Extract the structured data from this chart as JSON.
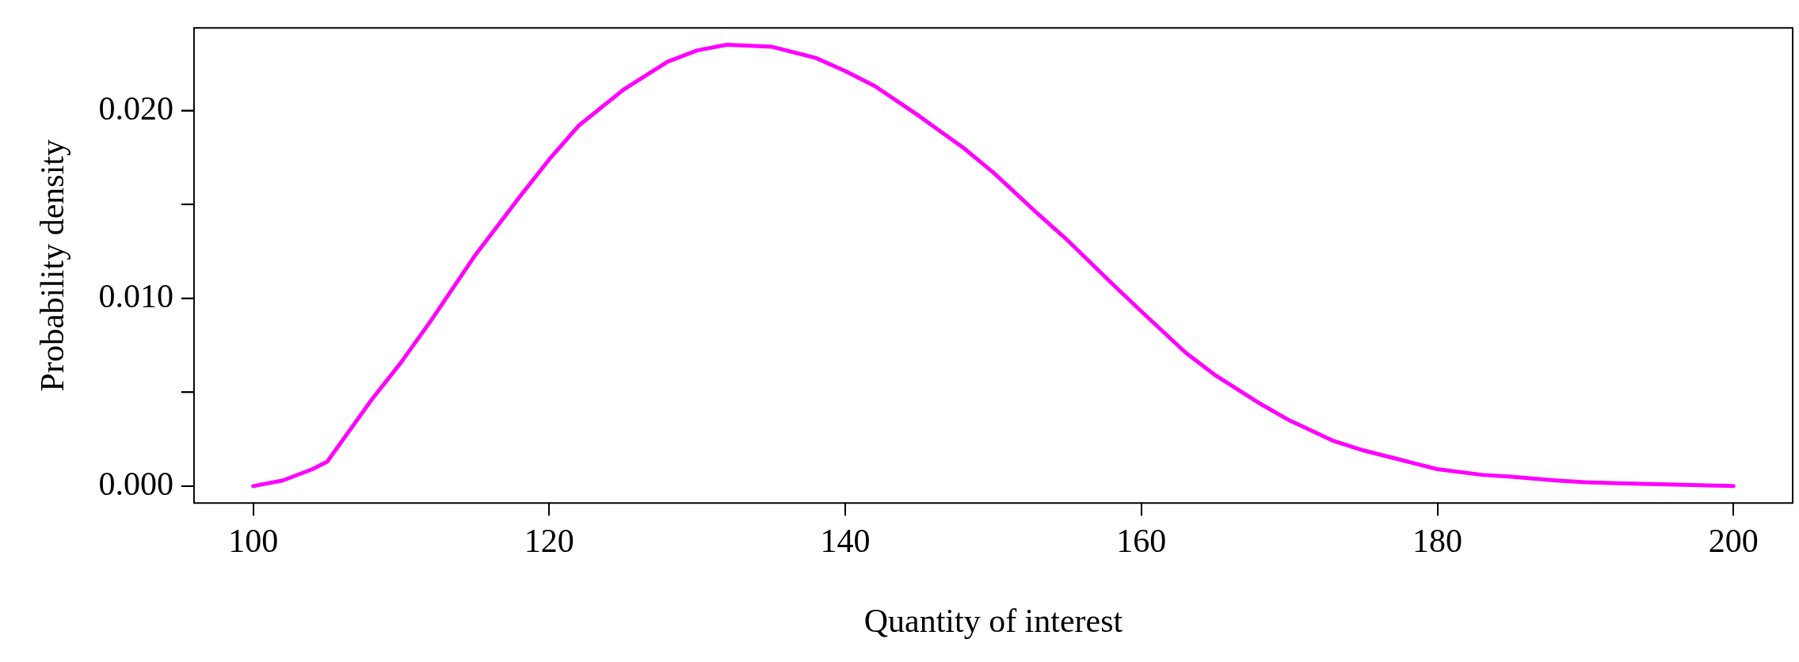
{
  "chart_data": {
    "type": "line",
    "xlabel": "Quantity of interest",
    "ylabel": "Probability density",
    "x": [
      100,
      102,
      104,
      105,
      108,
      110,
      112,
      115,
      118,
      120,
      122,
      125,
      128,
      130,
      132,
      135,
      138,
      140,
      142,
      145,
      148,
      150,
      153,
      155,
      158,
      160,
      163,
      165,
      168,
      170,
      173,
      175,
      178,
      180,
      183,
      185,
      188,
      190,
      195,
      200
    ],
    "series": [
      {
        "color": "#ff00ff",
        "values": [
          0,
          0.0003,
          0.0009,
          0.0013,
          0.0046,
          0.0066,
          0.0088,
          0.0123,
          0.0154,
          0.0174,
          0.0192,
          0.0211,
          0.0226,
          0.0232,
          0.0235,
          0.0234,
          0.0228,
          0.0221,
          0.0213,
          0.0197,
          0.018,
          0.0167,
          0.0145,
          0.0131,
          0.0108,
          0.0093,
          0.0071,
          0.0059,
          0.0044,
          0.0035,
          0.0024,
          0.0019,
          0.0013,
          0.0009,
          0.0006,
          0.0005,
          0.0003,
          0.0002,
          0.0001,
          0
        ]
      }
    ],
    "xlim": [
      96,
      204
    ],
    "xticks": [
      100,
      120,
      140,
      160,
      180,
      200
    ],
    "ylim": [
      -0.0009,
      0.0244
    ],
    "yticks": [
      {
        "value": 0,
        "label": "0.000"
      },
      {
        "value": 0.005,
        "label": null
      },
      {
        "value": 0.01,
        "label": "0.010"
      },
      {
        "value": 0.015,
        "label": null
      },
      {
        "value": 0.02,
        "label": "0.020"
      }
    ],
    "grid": false,
    "legend": false,
    "marker": "none",
    "line_style": "solid"
  }
}
